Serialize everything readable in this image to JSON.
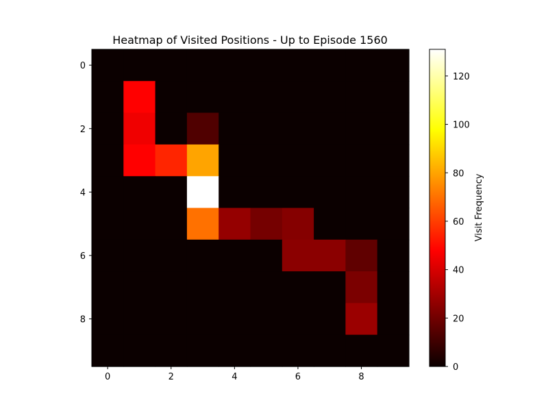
{
  "chart_data": {
    "type": "heatmap",
    "title": "Heatmap of Visited Positions - Up to Episode 1560",
    "xlabel": "",
    "ylabel": "",
    "rows": 10,
    "cols": 10,
    "x_ticks": [
      "0",
      "2",
      "4",
      "6",
      "8"
    ],
    "y_ticks": [
      "0",
      "2",
      "4",
      "6",
      "8"
    ],
    "colormap": "hot",
    "vmin": 0,
    "vmax": 131,
    "colorbar_label": "Visit Frequency",
    "colorbar_ticks": [
      "0",
      "20",
      "40",
      "60",
      "80",
      "100",
      "120"
    ],
    "values": [
      [
        0,
        0,
        0,
        0,
        0,
        0,
        0,
        0,
        0,
        0
      ],
      [
        0,
        46,
        0,
        0,
        0,
        0,
        0,
        0,
        0,
        0
      ],
      [
        0,
        43,
        0,
        13,
        0,
        0,
        0,
        0,
        0,
        0
      ],
      [
        0,
        46,
        55,
        80,
        0,
        0,
        0,
        0,
        0,
        0
      ],
      [
        0,
        0,
        0,
        131,
        0,
        0,
        0,
        0,
        0,
        0
      ],
      [
        0,
        0,
        0,
        70,
        26,
        20,
        23,
        0,
        0,
        0
      ],
      [
        0,
        0,
        0,
        0,
        0,
        0,
        24,
        24,
        16,
        0
      ],
      [
        0,
        0,
        0,
        0,
        0,
        0,
        0,
        0,
        21,
        0
      ],
      [
        0,
        0,
        0,
        0,
        0,
        0,
        0,
        0,
        27,
        0
      ],
      [
        0,
        0,
        0,
        0,
        0,
        0,
        0,
        0,
        0,
        0
      ]
    ]
  }
}
